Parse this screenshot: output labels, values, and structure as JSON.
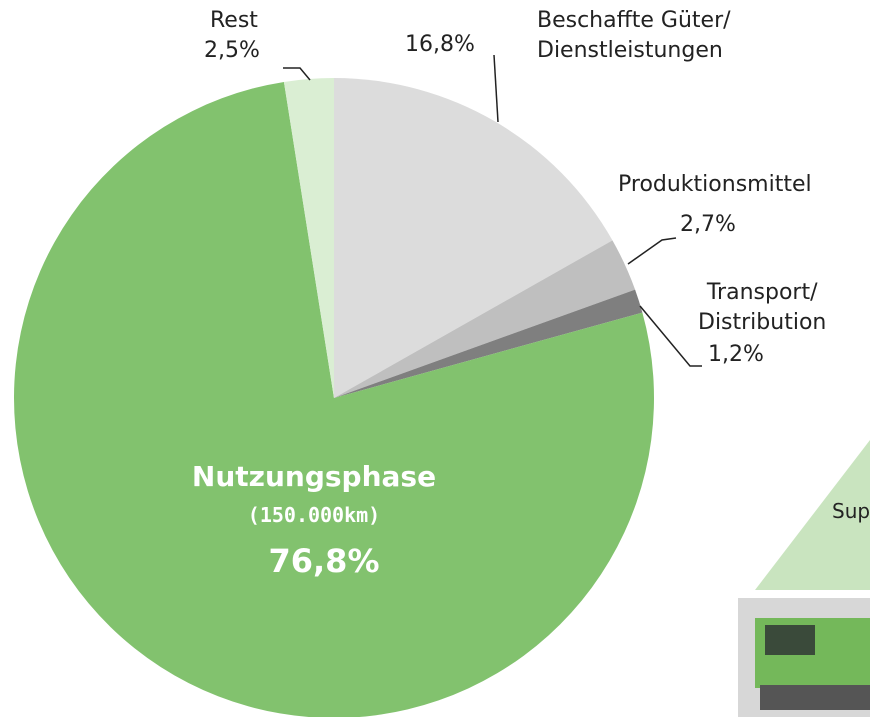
{
  "chart_data": {
    "type": "pie",
    "categories": [
      "Beschaffte Güter/\nDienstleistungen",
      "Produktionsmittel",
      "Transport/\nDistribution",
      "Nutzungsphase",
      "Rest"
    ],
    "values": [
      16.8,
      2.7,
      1.2,
      76.8,
      2.5
    ],
    "value_labels": [
      "16,8%",
      "2,7%",
      "1,2%",
      "76,8%",
      "2,5%"
    ],
    "colors": [
      "#dcdcdc",
      "#bfbfbf",
      "#7f7f7f",
      "#82c26e",
      "#daeed3"
    ],
    "annotation": "(150.000km)",
    "inset_text": "Sup"
  }
}
